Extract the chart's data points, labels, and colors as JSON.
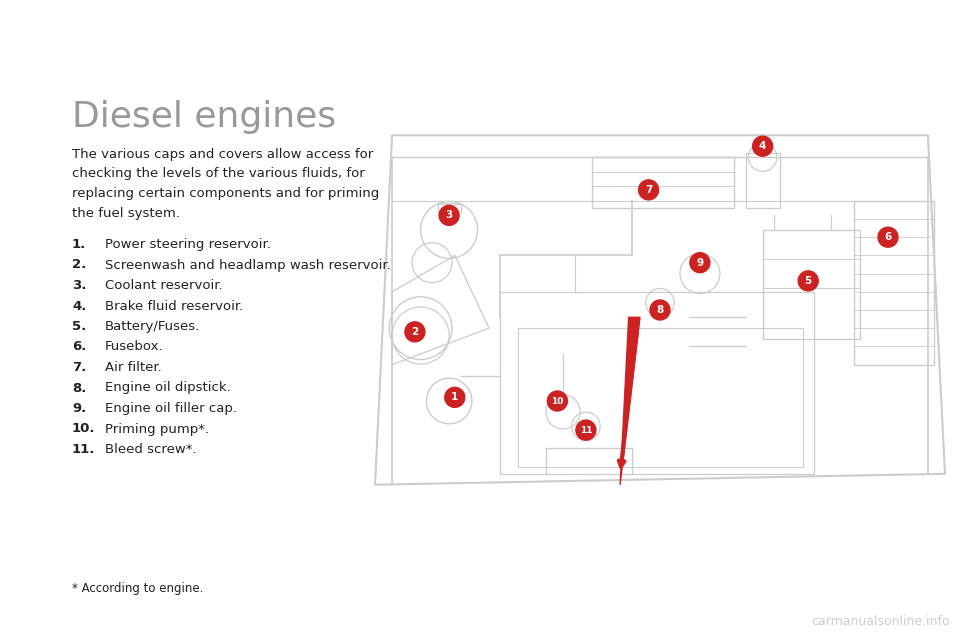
{
  "title": "Diesel engines",
  "background_color": "#ffffff",
  "title_color": "#999999",
  "title_fontsize": 26,
  "body_text": "The various caps and covers allow access for\nchecking the levels of the various fluids, for\nreplacing certain components and for priming\nthe fuel system.",
  "body_fontsize": 9.5,
  "body_color": "#222222",
  "items": [
    {
      "num": "1.",
      "text": "Power steering reservoir."
    },
    {
      "num": "2.",
      "text": "Screenwash and headlamp wash reservoir."
    },
    {
      "num": "3.",
      "text": "Coolant reservoir."
    },
    {
      "num": "4.",
      "text": "Brake fluid reservoir."
    },
    {
      "num": "5.",
      "text": "Battery/Fuses."
    },
    {
      "num": "6.",
      "text": "Fusebox."
    },
    {
      "num": "7.",
      "text": "Air filter."
    },
    {
      "num": "8.",
      "text": "Engine oil dipstick."
    },
    {
      "num": "9.",
      "text": "Engine oil filler cap."
    },
    {
      "num": "10.",
      "text": "Priming pump*."
    },
    {
      "num": "11.",
      "text": "Bleed screw*."
    }
  ],
  "footnote": "* According to engine.",
  "footnote_fontsize": 8.5,
  "item_fontsize": 9.5,
  "watermark": "carmanualsonline.info",
  "watermark_color": "#cccccc",
  "watermark_fontsize": 9,
  "red_circle_color": "#cc2222",
  "line_color": "#cccccc"
}
